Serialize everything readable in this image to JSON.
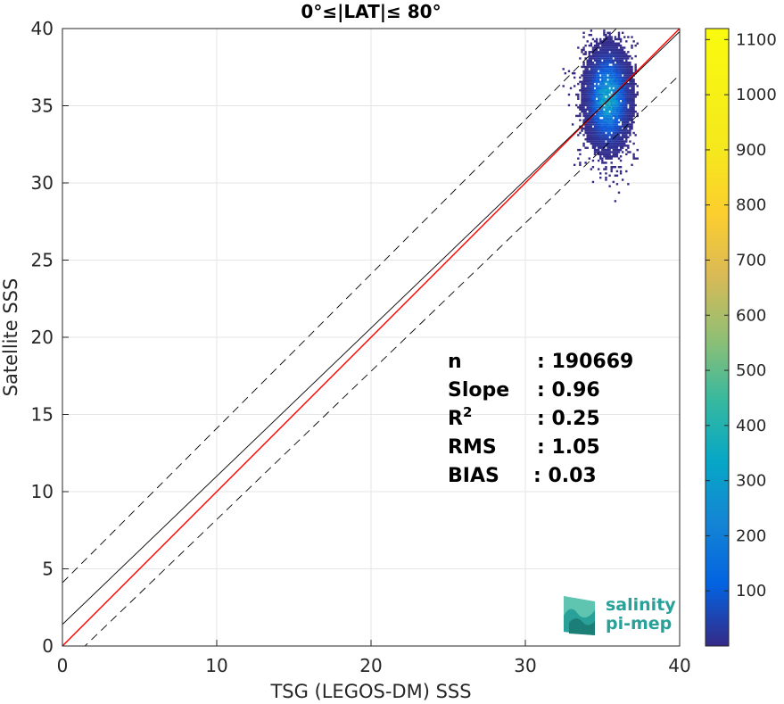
{
  "chart_data": {
    "type": "scatter",
    "subtype": "2d-density-histogram",
    "title": "0°≤|LAT|≤ 80°",
    "xlabel": "TSG (LEGOS-DM) SSS",
    "ylabel": "Satellite SSS",
    "xlim": [
      0,
      40
    ],
    "ylim": [
      0,
      40
    ],
    "xticks": [
      0,
      10,
      20,
      30,
      40
    ],
    "yticks": [
      0,
      5,
      10,
      15,
      20,
      25,
      30,
      35,
      40
    ],
    "grid": true,
    "reference_lines": [
      {
        "role": "identity",
        "color": "#ff0000",
        "style": "solid",
        "x": [
          0,
          40
        ],
        "y": [
          0,
          40
        ]
      },
      {
        "role": "regression",
        "color": "#000000",
        "style": "solid",
        "x": [
          0,
          40
        ],
        "y": [
          1.4,
          39.8
        ]
      },
      {
        "role": "upper-bound",
        "color": "#000000",
        "style": "dashed",
        "x": [
          0,
          40
        ],
        "y": [
          4.1,
          44.1
        ]
      },
      {
        "role": "lower-bound",
        "color": "#000000",
        "style": "dashed",
        "x": [
          0,
          40
        ],
        "y": [
          -1.4,
          37.0
        ]
      }
    ],
    "density_cloud": {
      "center": [
        35.3,
        35.4
      ],
      "spread": [
        0.85,
        1.9
      ],
      "x_range": [
        31.8,
        37.3
      ],
      "y_range": [
        28.2,
        40.0
      ],
      "peak_count": 1100
    },
    "stats": [
      {
        "label": "n",
        "value": ": 190669"
      },
      {
        "label": "Slope",
        "value": ": 0.96"
      },
      {
        "label": "R",
        "sup": "2",
        "value": ": 0.25"
      },
      {
        "label": "RMS",
        "value": ": 1.05"
      },
      {
        "label": "BIAS",
        "value": ": 0.03"
      }
    ],
    "colorbar": {
      "range": [
        0,
        1120
      ],
      "ticks": [
        100,
        200,
        300,
        400,
        500,
        600,
        700,
        800,
        900,
        1000,
        1100
      ],
      "colormap": "parula"
    }
  },
  "logo": {
    "line1": "salinity",
    "line2": "pi-mep",
    "color": "#2aa198"
  }
}
